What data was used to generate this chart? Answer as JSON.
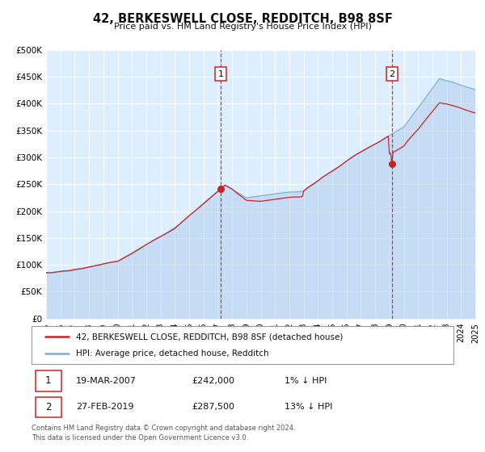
{
  "title": "42, BERKESWELL CLOSE, REDDITCH, B98 8SF",
  "subtitle": "Price paid vs. HM Land Registry's House Price Index (HPI)",
  "ylim": [
    0,
    500000
  ],
  "yticks": [
    0,
    50000,
    100000,
    150000,
    200000,
    250000,
    300000,
    350000,
    400000,
    450000,
    500000
  ],
  "ytick_labels": [
    "£0",
    "£50K",
    "£100K",
    "£150K",
    "£200K",
    "£250K",
    "£300K",
    "£350K",
    "£400K",
    "£450K",
    "£500K"
  ],
  "hpi_color": "#a8c8e8",
  "hpi_line_color": "#7aafd4",
  "price_color": "#cc2222",
  "bg_color": "#ddeeff",
  "grid_color": "#ffffff",
  "marker1_date": 2007.21,
  "marker1_price": 242000,
  "marker2_date": 2019.16,
  "marker2_price": 287500,
  "legend_line1": "42, BERKESWELL CLOSE, REDDITCH, B98 8SF (detached house)",
  "legend_line2": "HPI: Average price, detached house, Redditch",
  "table_row1": [
    "1",
    "19-MAR-2007",
    "£242,000",
    "1% ↓ HPI"
  ],
  "table_row2": [
    "2",
    "27-FEB-2019",
    "£287,500",
    "13% ↓ HPI"
  ],
  "footnote1": "Contains HM Land Registry data © Crown copyright and database right 2024.",
  "footnote2": "This data is licensed under the Open Government Licence v3.0.",
  "xmin": 1995,
  "xmax": 2025
}
